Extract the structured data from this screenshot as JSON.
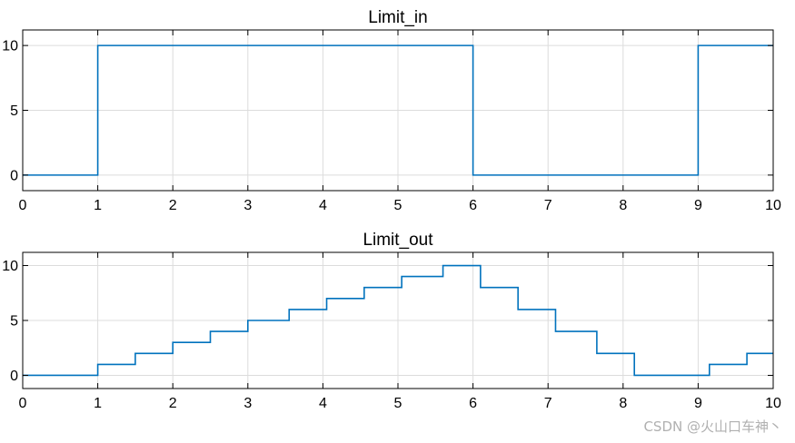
{
  "chart_data": [
    {
      "type": "line",
      "title": "Limit_in",
      "xlabel": "",
      "ylabel": "",
      "xlim": [
        0,
        10
      ],
      "ylim": [
        -1.2,
        11.2
      ],
      "xticks": [
        0,
        1,
        2,
        3,
        4,
        5,
        6,
        7,
        8,
        9,
        10
      ],
      "yticks": [
        0,
        5,
        10
      ],
      "grid": true,
      "step": true,
      "series": [
        {
          "color": "#0072bd",
          "x": [
            0,
            1,
            6,
            9,
            10
          ],
          "y": [
            0,
            10,
            0,
            10,
            10
          ]
        }
      ]
    },
    {
      "type": "line",
      "title": "Limit_out",
      "xlabel": "",
      "ylabel": "",
      "xlim": [
        0,
        10
      ],
      "ylim": [
        -1.2,
        11.2
      ],
      "xticks": [
        0,
        1,
        2,
        3,
        4,
        5,
        6,
        7,
        8,
        9,
        10
      ],
      "yticks": [
        0,
        5,
        10
      ],
      "grid": true,
      "step": true,
      "series": [
        {
          "color": "#0072bd",
          "x": [
            0,
            1,
            1.5,
            2,
            2.5,
            3,
            3.55,
            4.05,
            4.55,
            5.05,
            5.6,
            6.1,
            6.6,
            7.1,
            7.65,
            8.15,
            9.15,
            9.65,
            10
          ],
          "y": [
            0,
            1,
            2,
            3,
            4,
            5,
            6,
            7,
            8,
            9,
            10,
            8,
            6,
            4,
            2,
            0,
            1,
            2,
            2
          ]
        }
      ]
    }
  ],
  "watermark": "CSDN @火山口车神丶"
}
